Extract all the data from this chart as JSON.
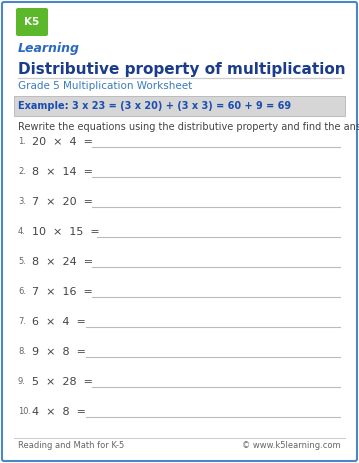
{
  "title": "Distributive property of multiplication",
  "subtitle": "Grade 5 Multiplication Worksheet",
  "example_text": "Example: 3 x 23 = (3 x 20) + (3 x 3) = 60 + 9 = 69",
  "instruction": "Rewrite the equations using the distributive property and find the answer.",
  "problems": [
    [
      "20",
      "4"
    ],
    [
      "8",
      "14"
    ],
    [
      "7",
      "20"
    ],
    [
      "10",
      "15"
    ],
    [
      "8",
      "24"
    ],
    [
      "7",
      "16"
    ],
    [
      "6",
      "4"
    ],
    [
      "9",
      "8"
    ],
    [
      "5",
      "28"
    ],
    [
      "4",
      "8"
    ]
  ],
  "footer_left": "Reading and Math for K-5",
  "footer_right": "© www.k5learning.com",
  "bg_color": "#ffffff",
  "border_color": "#4a86c8",
  "title_color": "#1a3c8a",
  "subtitle_color": "#3a7abf",
  "example_bg": "#d6d6d6",
  "example_border": "#aaaaaa",
  "example_text_color": "#1a4db0",
  "problem_color": "#444444",
  "number_color": "#666666",
  "line_color": "#bbbbbb",
  "footer_color": "#666666",
  "logo_green": "#5cb82a",
  "logo_blue": "#2a7acc",
  "logo_text_color": "#2a6abf"
}
